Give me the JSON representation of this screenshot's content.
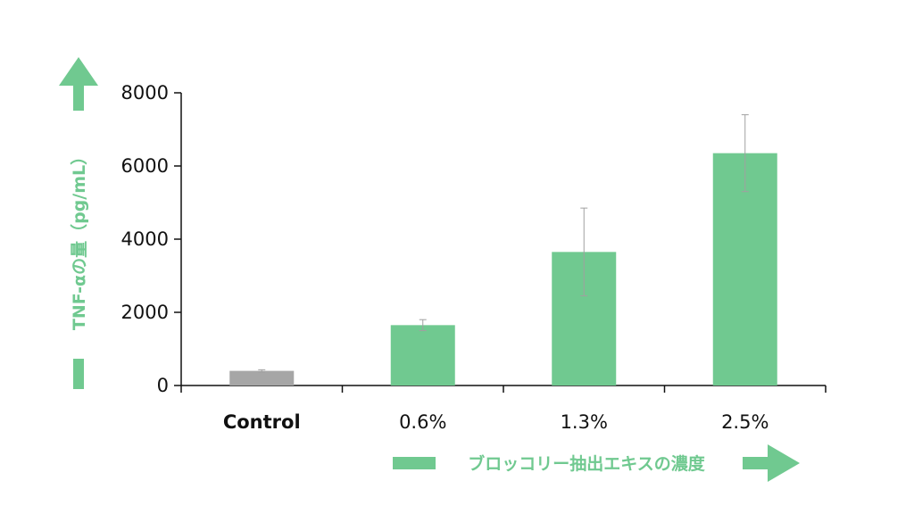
{
  "chart_data": {
    "type": "bar",
    "categories": [
      "Control",
      "0.6%",
      "1.3%",
      "2.5%"
    ],
    "values": [
      400,
      1650,
      3650,
      6350
    ],
    "error_bars": [
      30,
      150,
      1200,
      1050
    ],
    "ylim": [
      0,
      8000
    ],
    "yticks": [
      0,
      2000,
      4000,
      6000,
      8000
    ],
    "ylabel": "TNF-αの量（pg/mL）",
    "xlabel": "ブロッコリー抽出エキスの濃度",
    "grid": false,
    "legend": "none",
    "colors": {
      "control_bar": "#a6a6a6",
      "treatment_bar": "#70c990",
      "arrow": "#70c990",
      "axis": "#111111",
      "error_bar": "#a0a0a0"
    }
  }
}
